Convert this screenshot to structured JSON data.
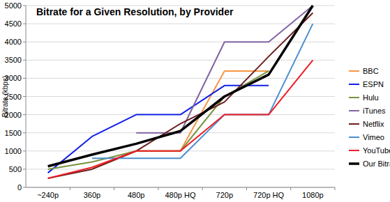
{
  "chart_data": {
    "type": "line",
    "title": "Bitrate for a Given Resolution, by Provider",
    "y_label": "Bitrate (kbps)",
    "categories": [
      "~240p",
      "360p",
      "480p",
      "480p HQ",
      "720p",
      "720p HQ",
      "1080p"
    ],
    "series": [
      {
        "name": "BBC",
        "color": "#f79646",
        "values": [
          null,
          500,
          1000,
          1000,
          3200,
          3200,
          null
        ]
      },
      {
        "name": "ESPN",
        "color": "#1020e8",
        "values": [
          400,
          1400,
          2000,
          2000,
          2800,
          2800,
          null
        ]
      },
      {
        "name": "Hulu",
        "color": "#77933c",
        "values": [
          500,
          700,
          1000,
          1000,
          2500,
          3200,
          null
        ]
      },
      {
        "name": "iTunes",
        "color": "#8064a2",
        "values": [
          null,
          null,
          1500,
          1500,
          4000,
          4000,
          5000
        ]
      },
      {
        "name": "Netflix",
        "color": "#6b1d1d",
        "values": [
          250,
          500,
          1000,
          1750,
          2350,
          3600,
          4800
        ]
      },
      {
        "name": "Vimeo",
        "color": "#4a8fd0",
        "values": [
          null,
          800,
          800,
          800,
          2000,
          2000,
          4500
        ]
      },
      {
        "name": "YouTube",
        "color": "#ee1c25",
        "values": [
          250,
          550,
          1000,
          1000,
          2000,
          2000,
          3500
        ]
      },
      {
        "name": "Our Bitrate",
        "color": "#000000",
        "values": [
          580,
          900,
          1200,
          1550,
          2500,
          3100,
          5000
        ]
      }
    ],
    "ylim": [
      0,
      5000
    ],
    "yticks": [
      0,
      500,
      1000,
      1500,
      2000,
      2500,
      3000,
      3500,
      4000,
      4500,
      5000
    ],
    "grid": true,
    "legend": "right"
  }
}
